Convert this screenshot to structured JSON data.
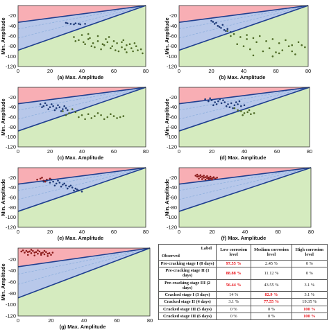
{
  "colors": {
    "red_zone": "#f8aeb4",
    "blue_zone": "#b8c8ea",
    "green_zone": "#d5ebbf",
    "boundary_line": "#1f3f8f",
    "dash_line": "#8fb0dd",
    "cracking_points": "#1e3a78",
    "cracked_points": "#4e6a26",
    "panel_g_points": "#8b1a1a",
    "highlight_text": "#e8131a"
  },
  "chart_data": [
    {
      "id": "a",
      "type": "scatter",
      "xlabel": "(a) Max. Amplitude",
      "ylabel": "Min. Amplitude",
      "xlim": [
        0,
        80
      ],
      "ylim": [
        -120,
        0
      ],
      "xticks": [
        "0",
        "20",
        "40",
        "60",
        "80"
      ],
      "yticks": [
        "-20",
        "-40",
        "-60",
        "-80",
        "-100",
        "-120"
      ],
      "series": [
        {
          "color": "green",
          "x": [
            35,
            38,
            41,
            44,
            47,
            50,
            53,
            56,
            59,
            62,
            65,
            68,
            71,
            74,
            77,
            40,
            45,
            50,
            55,
            60,
            65,
            70,
            75,
            48,
            52,
            58,
            63,
            68,
            42,
            46,
            54,
            61,
            67,
            72,
            78,
            36,
            44,
            57,
            66,
            73
          ],
          "y": [
            -62,
            -68,
            -72,
            -66,
            -74,
            -70,
            -76,
            -72,
            -80,
            -74,
            -82,
            -78,
            -84,
            -80,
            -86,
            -58,
            -64,
            -60,
            -66,
            -70,
            -72,
            -76,
            -88,
            -82,
            -86,
            -84,
            -90,
            -92,
            -76,
            -80,
            -78,
            -88,
            -86,
            -90,
            -94,
            -70,
            -56,
            -62,
            -68,
            -74
          ]
        },
        {
          "color": "blue",
          "x": [
            30,
            33,
            36,
            39,
            42,
            31,
            35,
            38
          ],
          "y": [
            -34,
            -36,
            -35,
            -37,
            -36,
            -35,
            -37,
            -36
          ]
        }
      ]
    },
    {
      "id": "b",
      "type": "scatter",
      "xlabel": "(b) Max. Amplitude",
      "ylabel": "Min. Amplitude",
      "xlim": [
        0,
        80
      ],
      "ylim": [
        -120,
        0
      ],
      "xticks": [
        "0",
        "20",
        "40",
        "60",
        "80"
      ],
      "yticks": [
        "-20",
        "-40",
        "-60",
        "-80",
        "-100",
        "-120"
      ],
      "series": [
        {
          "color": "blue",
          "x": [
            20,
            22,
            24,
            26,
            28,
            23,
            25,
            27,
            21,
            29,
            30,
            32
          ],
          "y": [
            -30,
            -36,
            -40,
            -44,
            -48,
            -34,
            -42,
            -38,
            -32,
            -50,
            -46,
            -52
          ]
        },
        {
          "color": "green",
          "x": [
            30,
            34,
            38,
            42,
            46,
            50,
            54,
            58,
            62,
            66,
            70,
            74,
            78,
            36,
            40,
            44,
            48,
            52,
            56,
            60,
            64,
            68,
            72,
            32,
            46,
            58,
            70,
            76,
            42,
            62
          ],
          "y": [
            -50,
            -56,
            -62,
            -58,
            -64,
            -60,
            -70,
            -66,
            -74,
            -68,
            -78,
            -72,
            -82,
            -76,
            -80,
            -86,
            -72,
            -90,
            -84,
            -92,
            -88,
            -80,
            -96,
            -60,
            -98,
            -100,
            -90,
            -78,
            -66,
            -94
          ]
        }
      ]
    },
    {
      "id": "c",
      "type": "scatter",
      "xlabel": "(c) Max. Amplitude",
      "ylabel": "Min. Amplitude",
      "xlim": [
        0,
        80
      ],
      "ylim": [
        -120,
        0
      ],
      "xticks": [
        "0",
        "20",
        "40",
        "60",
        "80"
      ],
      "yticks": [
        "-20",
        "-40",
        "-60",
        "-80",
        "-100",
        "-120"
      ],
      "series": [
        {
          "color": "blue",
          "x": [
            14,
            16,
            18,
            20,
            22,
            24,
            26,
            28,
            30,
            17,
            19,
            21,
            23,
            25,
            27,
            15,
            29,
            31
          ],
          "y": [
            -34,
            -38,
            -36,
            -40,
            -38,
            -42,
            -40,
            -44,
            -42,
            -32,
            -44,
            -34,
            -46,
            -36,
            -48,
            -40,
            -38,
            -46
          ]
        },
        {
          "color": "green",
          "x": [
            28,
            32,
            36,
            40,
            44,
            48,
            52,
            56,
            60,
            64,
            30,
            38,
            46,
            54,
            62,
            34,
            42,
            50,
            58,
            66
          ],
          "y": [
            -48,
            -52,
            -50,
            -56,
            -54,
            -58,
            -56,
            -60,
            -58,
            -60,
            -56,
            -60,
            -62,
            -64,
            -62,
            -44,
            -64,
            -52,
            -54,
            -58
          ]
        }
      ]
    },
    {
      "id": "d",
      "type": "scatter",
      "xlabel": "(d) Max. Amplitude",
      "ylabel": "Min. Amplitude",
      "xlim": [
        0,
        80
      ],
      "ylim": [
        -120,
        0
      ],
      "xticks": [
        "0",
        "20",
        "40",
        "60",
        "80"
      ],
      "yticks": [
        "-20",
        "-40",
        "-60",
        "-80",
        "-100",
        "-120"
      ],
      "series": [
        {
          "color": "blue",
          "x": [
            16,
            18,
            20,
            22,
            24,
            26,
            28,
            30,
            32,
            34,
            36,
            38,
            19,
            23,
            27,
            31,
            35,
            21,
            25,
            29,
            33,
            37,
            40
          ],
          "y": [
            -24,
            -28,
            -26,
            -30,
            -28,
            -32,
            -30,
            -34,
            -32,
            -36,
            -34,
            -38,
            -22,
            -34,
            -26,
            -40,
            -30,
            -36,
            -24,
            -38,
            -42,
            -28,
            -36
          ]
        },
        {
          "color": "green",
          "x": [
            34,
            36,
            38,
            40,
            42,
            44,
            46,
            39,
            43
          ],
          "y": [
            -42,
            -46,
            -48,
            -52,
            -50,
            -54,
            -52,
            -56,
            -46
          ]
        }
      ]
    },
    {
      "id": "e",
      "type": "scatter",
      "xlabel": "(e) Max. Amplitude",
      "ylabel": "Min. Amplitude",
      "xlim": [
        0,
        80
      ],
      "ylim": [
        -120,
        0
      ],
      "xticks": [
        "0",
        "20",
        "40",
        "60",
        "80"
      ],
      "yticks": [
        "-20",
        "-40",
        "-60",
        "-80",
        "-100",
        "-120"
      ],
      "series": [
        {
          "color": "red",
          "x": [
            12,
            14,
            16,
            18,
            20,
            15,
            17
          ],
          "y": [
            -24,
            -22,
            -26,
            -24,
            -22,
            -20,
            -28
          ]
        },
        {
          "color": "blue",
          "x": [
            16,
            18,
            20,
            22,
            24,
            26,
            28,
            30,
            32,
            34,
            36,
            38,
            40,
            21,
            25,
            29,
            33,
            37,
            23,
            27,
            31,
            35
          ],
          "y": [
            -28,
            -26,
            -30,
            -28,
            -32,
            -30,
            -34,
            -36,
            -38,
            -40,
            -42,
            -46,
            -48,
            -24,
            -26,
            -32,
            -36,
            -44,
            -36,
            -38,
            -42,
            -46
          ]
        }
      ]
    },
    {
      "id": "f",
      "type": "scatter",
      "xlabel": "(f) Max. Amplitude",
      "ylabel": "Min. Amplitude",
      "xlim": [
        0,
        80
      ],
      "ylim": [
        -120,
        0
      ],
      "xticks": [
        "0",
        "20",
        "40",
        "60",
        "80"
      ],
      "yticks": [
        "-20",
        "-40",
        "-60",
        "-80",
        "-100",
        "-120"
      ],
      "series": [
        {
          "color": "red",
          "x": [
            10,
            11,
            12,
            13,
            14,
            15,
            16,
            17,
            18,
            19,
            20,
            21,
            22,
            12,
            14,
            16,
            18,
            20,
            11,
            13,
            15,
            17,
            19,
            21,
            23
          ],
          "y": [
            -16,
            -18,
            -17,
            -19,
            -18,
            -20,
            -19,
            -21,
            -20,
            -22,
            -21,
            -20,
            -22,
            -22,
            -23,
            -24,
            -23,
            -24,
            -14,
            -15,
            -16,
            -17,
            -18,
            -19,
            -20
          ]
        }
      ]
    },
    {
      "id": "g",
      "type": "scatter",
      "xlabel": "(g) Max. Amplitude",
      "ylabel": "Min. Amplitude",
      "xlim": [
        0,
        80
      ],
      "ylim": [
        -120,
        0
      ],
      "xticks": [
        "0",
        "20",
        "40",
        "60",
        "80"
      ],
      "yticks": [
        "-20",
        "-40",
        "-60",
        "-80",
        "-100",
        "-120"
      ],
      "series": [
        {
          "color": "red",
          "x": [
            2,
            4,
            6,
            8,
            10,
            12,
            14,
            16,
            18,
            20,
            3,
            5,
            7,
            9,
            11,
            13,
            15,
            17,
            19,
            21,
            6,
            10,
            14,
            18,
            8,
            12,
            16
          ],
          "y": [
            -6,
            -8,
            -7,
            -9,
            -8,
            -10,
            -9,
            -11,
            -10,
            -12,
            -4,
            -5,
            -6,
            -5,
            -7,
            -6,
            -8,
            -7,
            -9,
            -8,
            -12,
            -13,
            -12,
            -14,
            -3,
            -4,
            -5
          ]
        }
      ]
    }
  ],
  "table": {
    "header_label": "Label",
    "header_observed": "Observed",
    "columns": [
      "Low corrosion level",
      "Medium corrosion level",
      "High corrosion level"
    ],
    "rows": [
      {
        "label": "Pre-cracking stage I (0 days)",
        "cells": [
          "97.55 %",
          "2.45 %",
          "0 %"
        ],
        "red": [
          true,
          false,
          false
        ]
      },
      {
        "label": "Pre-cracking stage II (1 days)",
        "cells": [
          "88.88 %",
          "11.12 %",
          "0 %"
        ],
        "red": [
          true,
          false,
          false
        ]
      },
      {
        "label": "Pre-cracking stage III (2 days)",
        "cells": [
          "56.44 %",
          "43.55 %",
          "3.1 %"
        ],
        "red": [
          true,
          false,
          false
        ]
      },
      {
        "label": "Cracked stage I (3 days)",
        "cells": [
          "14 %",
          "82.9 %",
          "3.1 %"
        ],
        "red": [
          false,
          true,
          false
        ]
      },
      {
        "label": "Cracked stage II (4 days)",
        "cells": [
          "3.1 %",
          "77.55 %",
          "19.35 %"
        ],
        "red": [
          false,
          true,
          false
        ]
      },
      {
        "label": "Cracked stage III (5 days)",
        "cells": [
          "0 %",
          "0 %",
          "100 %"
        ],
        "red": [
          false,
          false,
          true
        ]
      },
      {
        "label": "Cracked stage III (6 days)",
        "cells": [
          "0 %",
          "0 %",
          "100 %"
        ],
        "red": [
          false,
          false,
          true
        ]
      }
    ]
  }
}
